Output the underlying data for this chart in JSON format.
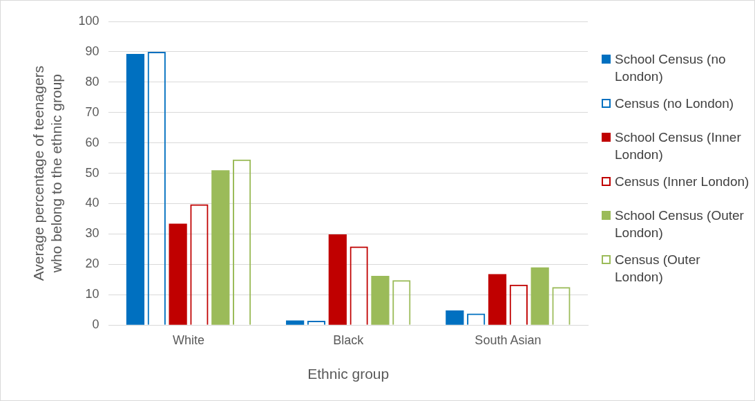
{
  "chart_data": {
    "type": "bar",
    "xlabel": "Ethnic group",
    "ylabel": "Average percentage of teenagers who belong to the ethnic group",
    "categories": [
      "White",
      "Black",
      "South Asian"
    ],
    "series": [
      {
        "name": "School Census (no London)",
        "color": "#0070c0",
        "values": [
          89.3,
          1.5,
          4.8
        ]
      },
      {
        "name": "Census (no London)",
        "color": "#0070c0",
        "values": [
          90.0,
          1.4,
          3.8
        ]
      },
      {
        "name": "School Census (Inner London)",
        "color": "#c00000",
        "values": [
          33.4,
          29.9,
          16.8
        ]
      },
      {
        "name": "Census (Inner London)",
        "color": "#c00000",
        "values": [
          39.8,
          25.9,
          13.3
        ]
      },
      {
        "name": "School Census (Outer London)",
        "color": "#9bbb59",
        "values": [
          51.0,
          16.2,
          19.0
        ]
      },
      {
        "name": "Census (Outer London)",
        "color": "#9bbb59",
        "values": [
          54.5,
          14.8,
          12.5
        ]
      }
    ],
    "ylim": [
      0,
      100
    ],
    "yticks": [
      0,
      10,
      20,
      30,
      40,
      50,
      60,
      70,
      80,
      90,
      100
    ],
    "grid": "y",
    "legend": "right"
  }
}
